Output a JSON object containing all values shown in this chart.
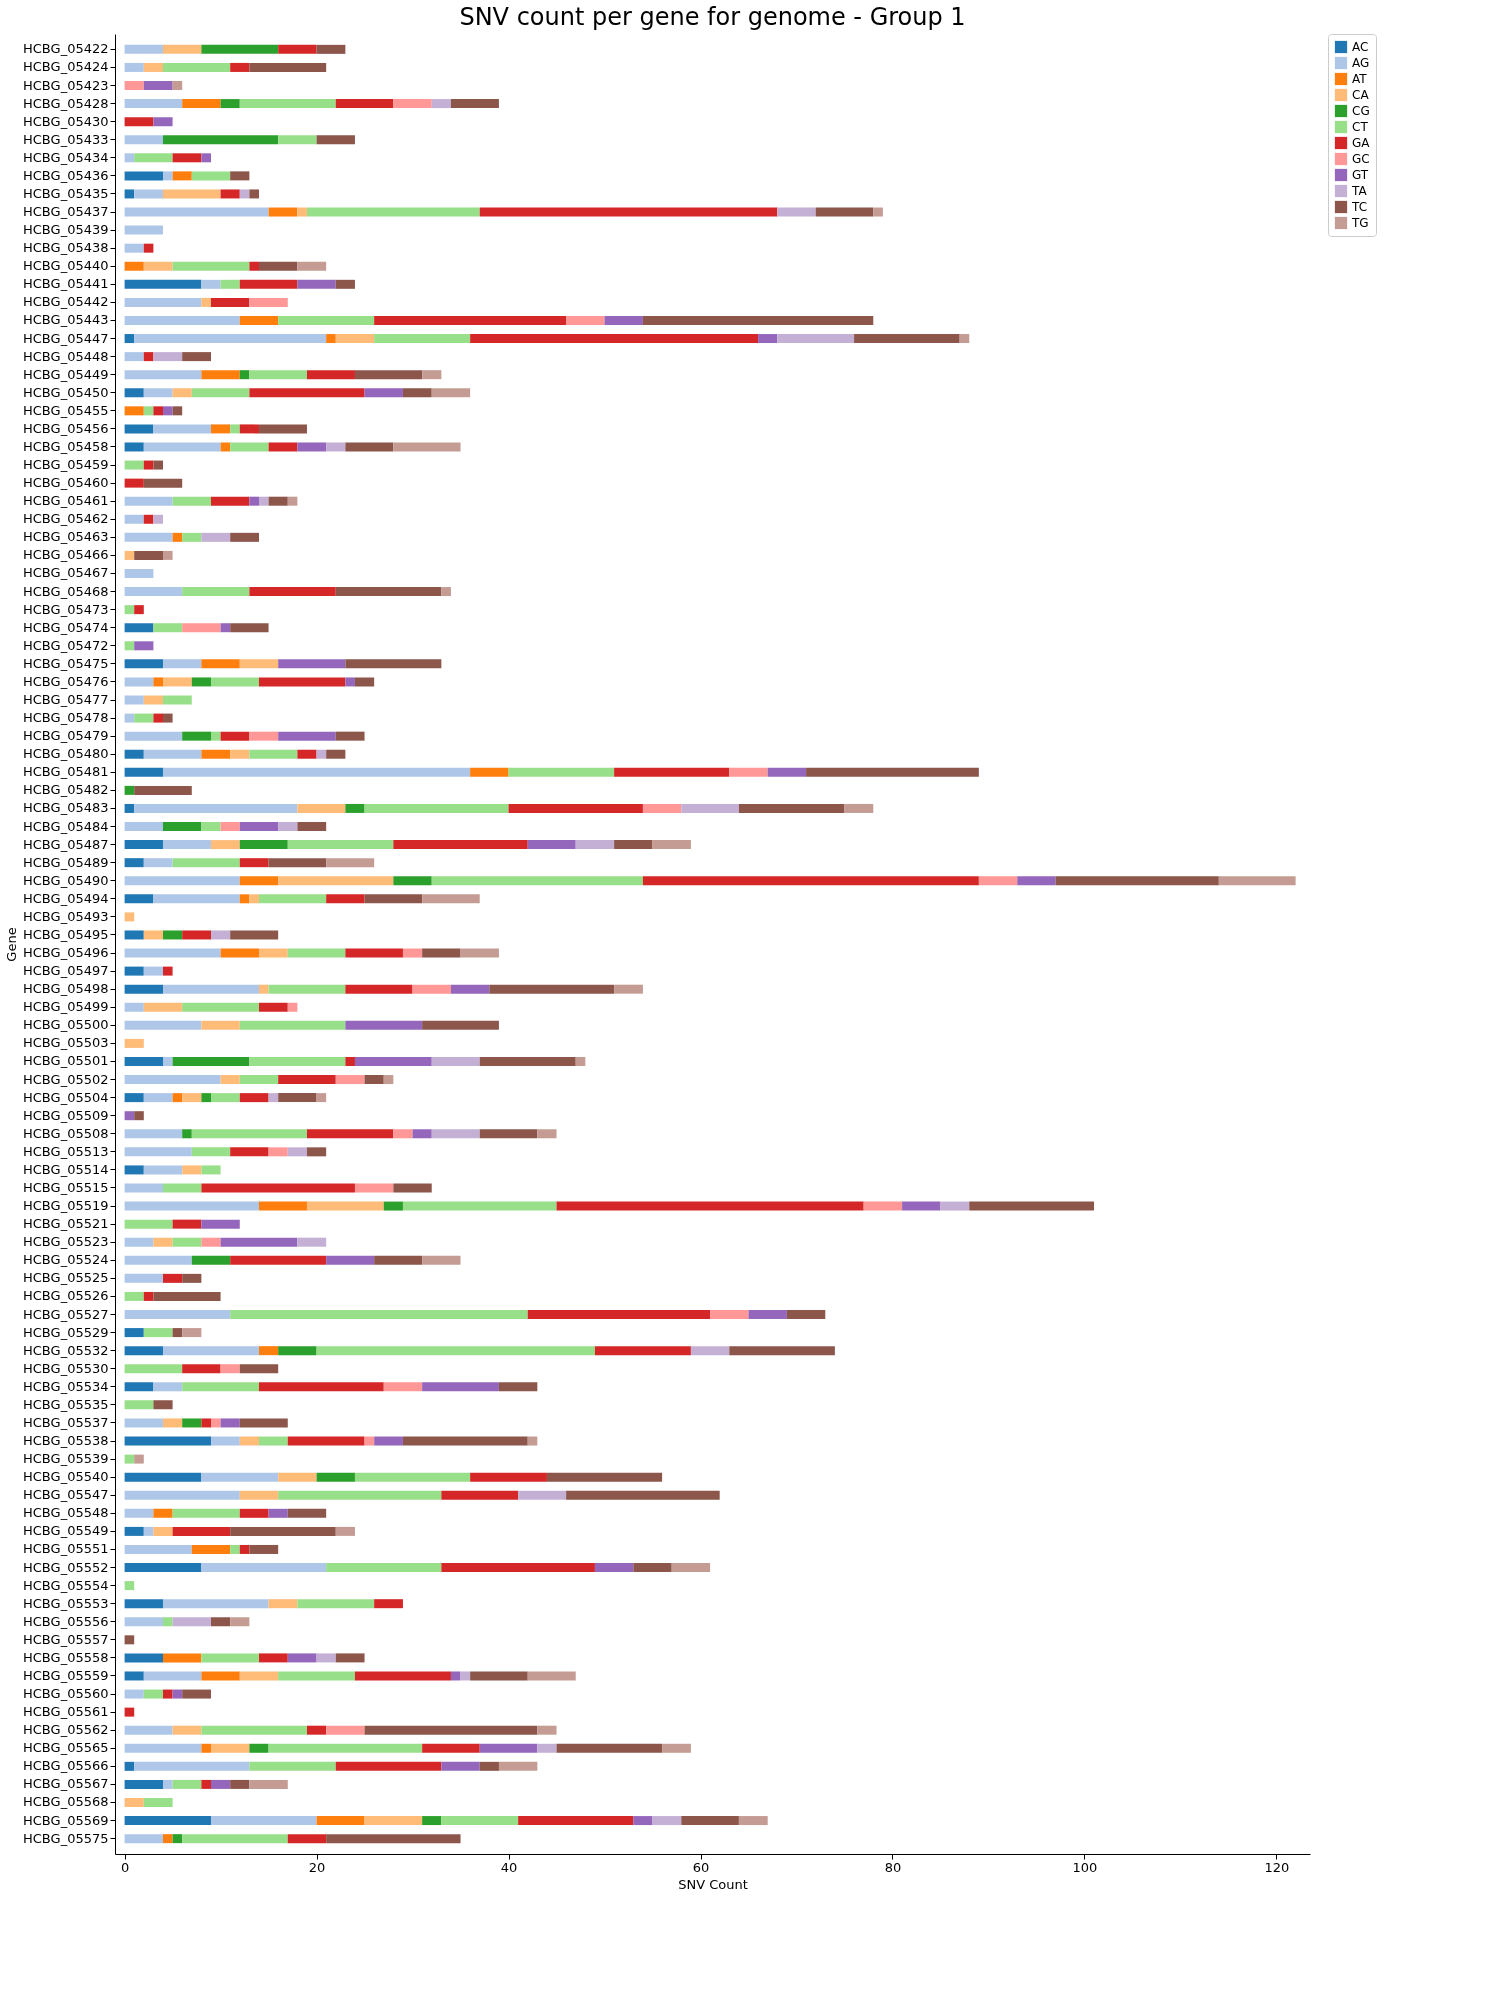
{
  "chart_data": {
    "type": "bar",
    "orientation": "horizontal",
    "stacked": true,
    "title": "SNV count per gene for genome - Group 1",
    "xlabel": "SNV Count",
    "ylabel": "Gene",
    "legend": "top right",
    "grid": false,
    "xlim": [
      -1,
      123.5
    ],
    "xticks": [
      0,
      20,
      40,
      60,
      80,
      100,
      120
    ],
    "categories": [
      "HCBG_05422",
      "HCBG_05424",
      "HCBG_05423",
      "HCBG_05428",
      "HCBG_05430",
      "HCBG_05433",
      "HCBG_05434",
      "HCBG_05436",
      "HCBG_05435",
      "HCBG_05437",
      "HCBG_05439",
      "HCBG_05438",
      "HCBG_05440",
      "HCBG_05441",
      "HCBG_05442",
      "HCBG_05443",
      "HCBG_05447",
      "HCBG_05448",
      "HCBG_05449",
      "HCBG_05450",
      "HCBG_05455",
      "HCBG_05456",
      "HCBG_05458",
      "HCBG_05459",
      "HCBG_05460",
      "HCBG_05461",
      "HCBG_05462",
      "HCBG_05463",
      "HCBG_05466",
      "HCBG_05467",
      "HCBG_05468",
      "HCBG_05473",
      "HCBG_05474",
      "HCBG_05472",
      "HCBG_05475",
      "HCBG_05476",
      "HCBG_05477",
      "HCBG_05478",
      "HCBG_05479",
      "HCBG_05480",
      "HCBG_05481",
      "HCBG_05482",
      "HCBG_05483",
      "HCBG_05484",
      "HCBG_05487",
      "HCBG_05489",
      "HCBG_05490",
      "HCBG_05494",
      "HCBG_05493",
      "HCBG_05495",
      "HCBG_05496",
      "HCBG_05497",
      "HCBG_05498",
      "HCBG_05499",
      "HCBG_05500",
      "HCBG_05503",
      "HCBG_05501",
      "HCBG_05502",
      "HCBG_05504",
      "HCBG_05509",
      "HCBG_05508",
      "HCBG_05513",
      "HCBG_05514",
      "HCBG_05515",
      "HCBG_05519",
      "HCBG_05521",
      "HCBG_05523",
      "HCBG_05524",
      "HCBG_05525",
      "HCBG_05526",
      "HCBG_05527",
      "HCBG_05529",
      "HCBG_05532",
      "HCBG_05530",
      "HCBG_05534",
      "HCBG_05535",
      "HCBG_05537",
      "HCBG_05538",
      "HCBG_05539",
      "HCBG_05540",
      "HCBG_05547",
      "HCBG_05548",
      "HCBG_05549",
      "HCBG_05551",
      "HCBG_05552",
      "HCBG_05554",
      "HCBG_05553",
      "HCBG_05556",
      "HCBG_05557",
      "HCBG_05558",
      "HCBG_05559",
      "HCBG_05560",
      "HCBG_05561",
      "HCBG_05562",
      "HCBG_05565",
      "HCBG_05566",
      "HCBG_05567",
      "HCBG_05568",
      "HCBG_05569",
      "HCBG_05575"
    ],
    "series": [
      {
        "name": "AC",
        "color": "#1f77b4",
        "values": [
          0,
          0,
          0,
          0,
          0,
          0,
          0,
          4,
          1,
          0,
          0,
          0,
          0,
          8,
          0,
          0,
          1,
          0,
          0,
          2,
          0,
          3,
          2,
          0,
          0,
          0,
          0,
          0,
          0,
          0,
          0,
          0,
          3,
          0,
          4,
          0,
          0,
          0,
          0,
          2,
          4,
          0,
          1,
          0,
          4,
          2,
          0,
          3,
          0,
          2,
          0,
          2,
          4,
          0,
          0,
          0,
          4,
          0,
          2,
          0,
          0,
          0,
          2,
          0,
          0,
          0,
          0,
          0,
          0,
          0,
          0,
          2,
          4,
          0,
          3,
          0,
          0,
          9,
          0,
          8,
          0,
          0,
          2,
          0,
          8,
          0,
          4,
          0,
          0,
          4,
          2,
          0,
          0,
          0,
          0,
          1,
          4,
          0,
          9,
          0
        ]
      },
      {
        "name": "AG",
        "color": "#aec7e8",
        "values": [
          4,
          2,
          0,
          6,
          0,
          4,
          1,
          1,
          3,
          15,
          4,
          2,
          0,
          2,
          8,
          12,
          20,
          2,
          8,
          3,
          0,
          6,
          8,
          0,
          0,
          5,
          2,
          5,
          0,
          3,
          6,
          0,
          0,
          0,
          4,
          3,
          2,
          1,
          6,
          6,
          32,
          0,
          17,
          4,
          5,
          3,
          12,
          9,
          0,
          0,
          10,
          2,
          10,
          2,
          8,
          0,
          1,
          10,
          3,
          0,
          6,
          7,
          4,
          4,
          14,
          0,
          3,
          7,
          4,
          0,
          11,
          0,
          10,
          0,
          3,
          0,
          4,
          3,
          0,
          8,
          12,
          3,
          1,
          7,
          13,
          0,
          11,
          4,
          0,
          0,
          6,
          2,
          0,
          5,
          8,
          12,
          1,
          0,
          11,
          4
        ]
      },
      {
        "name": "AT",
        "color": "#ff7f0e",
        "values": [
          0,
          0,
          0,
          4,
          0,
          0,
          0,
          2,
          0,
          3,
          0,
          0,
          2,
          0,
          0,
          4,
          1,
          0,
          4,
          0,
          2,
          2,
          1,
          0,
          0,
          0,
          0,
          1,
          0,
          0,
          0,
          0,
          0,
          0,
          4,
          1,
          0,
          0,
          0,
          3,
          4,
          0,
          0,
          0,
          0,
          0,
          4,
          1,
          0,
          0,
          4,
          0,
          0,
          0,
          0,
          0,
          0,
          0,
          1,
          0,
          0,
          0,
          0,
          0,
          5,
          0,
          0,
          0,
          0,
          0,
          0,
          0,
          2,
          0,
          0,
          0,
          0,
          0,
          0,
          0,
          0,
          2,
          0,
          4,
          0,
          0,
          0,
          0,
          0,
          4,
          4,
          0,
          0,
          0,
          1,
          0,
          0,
          0,
          5,
          1
        ]
      },
      {
        "name": "CA",
        "color": "#ffbb78",
        "values": [
          4,
          2,
          0,
          0,
          0,
          0,
          0,
          0,
          6,
          1,
          0,
          0,
          3,
          0,
          1,
          0,
          4,
          0,
          0,
          2,
          0,
          0,
          0,
          0,
          0,
          0,
          0,
          0,
          1,
          0,
          0,
          0,
          0,
          0,
          4,
          3,
          2,
          0,
          0,
          2,
          0,
          0,
          5,
          0,
          3,
          0,
          12,
          1,
          1,
          2,
          3,
          0,
          1,
          4,
          4,
          2,
          0,
          2,
          2,
          0,
          0,
          0,
          2,
          0,
          8,
          0,
          2,
          0,
          0,
          0,
          0,
          0,
          0,
          0,
          0,
          0,
          2,
          2,
          0,
          4,
          4,
          0,
          2,
          0,
          0,
          0,
          3,
          0,
          0,
          0,
          4,
          0,
          0,
          3,
          4,
          0,
          0,
          2,
          6,
          0
        ]
      },
      {
        "name": "CG",
        "color": "#2ca02c",
        "values": [
          8,
          0,
          0,
          2,
          0,
          12,
          0,
          0,
          0,
          0,
          0,
          0,
          0,
          0,
          0,
          0,
          0,
          0,
          1,
          0,
          0,
          0,
          0,
          0,
          0,
          0,
          0,
          0,
          0,
          0,
          0,
          0,
          0,
          0,
          0,
          2,
          0,
          0,
          3,
          0,
          0,
          1,
          2,
          4,
          5,
          0,
          4,
          0,
          0,
          2,
          0,
          0,
          0,
          0,
          0,
          0,
          8,
          0,
          1,
          0,
          1,
          0,
          0,
          0,
          2,
          0,
          0,
          4,
          0,
          0,
          0,
          0,
          4,
          0,
          0,
          0,
          2,
          0,
          0,
          4,
          0,
          0,
          0,
          0,
          0,
          0,
          0,
          0,
          0,
          0,
          0,
          0,
          0,
          0,
          2,
          0,
          0,
          0,
          2,
          1
        ]
      },
      {
        "name": "CT",
        "color": "#98df8a",
        "values": [
          0,
          7,
          0,
          10,
          0,
          4,
          4,
          4,
          0,
          18,
          0,
          0,
          8,
          2,
          0,
          10,
          10,
          0,
          6,
          6,
          1,
          1,
          4,
          2,
          0,
          4,
          0,
          2,
          0,
          0,
          7,
          1,
          3,
          1,
          0,
          5,
          3,
          2,
          1,
          5,
          11,
          0,
          15,
          2,
          11,
          7,
          22,
          7,
          0,
          0,
          6,
          0,
          8,
          8,
          11,
          0,
          10,
          4,
          3,
          0,
          12,
          4,
          2,
          4,
          16,
          5,
          3,
          0,
          0,
          2,
          31,
          3,
          29,
          6,
          8,
          3,
          0,
          3,
          1,
          12,
          17,
          7,
          0,
          1,
          12,
          1,
          8,
          1,
          0,
          6,
          8,
          2,
          0,
          11,
          16,
          9,
          3,
          3,
          8,
          11
        ]
      },
      {
        "name": "GA",
        "color": "#d62728",
        "values": [
          4,
          2,
          0,
          6,
          3,
          0,
          3,
          0,
          2,
          31,
          0,
          1,
          1,
          6,
          4,
          20,
          30,
          1,
          5,
          12,
          1,
          2,
          3,
          1,
          2,
          4,
          1,
          0,
          0,
          0,
          9,
          1,
          0,
          0,
          0,
          9,
          0,
          1,
          3,
          2,
          12,
          0,
          14,
          0,
          14,
          3,
          35,
          4,
          0,
          3,
          6,
          1,
          7,
          3,
          0,
          0,
          1,
          6,
          3,
          0,
          9,
          4,
          0,
          16,
          32,
          3,
          0,
          10,
          2,
          1,
          19,
          0,
          10,
          4,
          13,
          0,
          1,
          8,
          0,
          8,
          8,
          3,
          6,
          1,
          16,
          0,
          3,
          0,
          0,
          3,
          10,
          1,
          1,
          2,
          6,
          11,
          1,
          0,
          12,
          4
        ]
      },
      {
        "name": "GC",
        "color": "#ff9896",
        "values": [
          0,
          0,
          2,
          4,
          0,
          0,
          0,
          0,
          0,
          0,
          0,
          0,
          0,
          0,
          4,
          4,
          0,
          0,
          0,
          0,
          0,
          0,
          0,
          0,
          0,
          0,
          0,
          0,
          0,
          0,
          0,
          0,
          4,
          0,
          0,
          0,
          0,
          0,
          3,
          0,
          4,
          0,
          4,
          2,
          0,
          0,
          4,
          0,
          0,
          0,
          2,
          0,
          4,
          1,
          0,
          0,
          0,
          3,
          0,
          0,
          2,
          2,
          0,
          4,
          4,
          0,
          2,
          0,
          0,
          0,
          4,
          0,
          0,
          2,
          4,
          0,
          1,
          1,
          0,
          0,
          0,
          0,
          0,
          0,
          0,
          0,
          0,
          0,
          0,
          0,
          0,
          0,
          0,
          4,
          0,
          0,
          0,
          0,
          0,
          0
        ]
      },
      {
        "name": "GT",
        "color": "#9467bd",
        "values": [
          0,
          0,
          3,
          0,
          2,
          0,
          1,
          0,
          0,
          0,
          0,
          0,
          0,
          4,
          0,
          4,
          2,
          0,
          0,
          4,
          1,
          0,
          3,
          0,
          0,
          1,
          0,
          0,
          0,
          0,
          0,
          0,
          1,
          2,
          7,
          1,
          0,
          0,
          6,
          0,
          4,
          0,
          0,
          4,
          5,
          0,
          4,
          0,
          0,
          0,
          0,
          0,
          4,
          0,
          8,
          0,
          8,
          0,
          0,
          1,
          2,
          0,
          0,
          0,
          4,
          4,
          8,
          5,
          0,
          0,
          4,
          0,
          0,
          0,
          8,
          0,
          2,
          3,
          0,
          0,
          0,
          2,
          0,
          0,
          4,
          0,
          0,
          0,
          0,
          3,
          1,
          1,
          0,
          0,
          6,
          4,
          2,
          0,
          2,
          0
        ]
      },
      {
        "name": "TA",
        "color": "#c5b0d5",
        "values": [
          0,
          0,
          0,
          2,
          0,
          0,
          0,
          0,
          1,
          4,
          0,
          0,
          0,
          0,
          0,
          0,
          8,
          3,
          0,
          0,
          0,
          0,
          2,
          0,
          0,
          1,
          1,
          3,
          0,
          0,
          0,
          0,
          0,
          0,
          0,
          0,
          0,
          0,
          0,
          1,
          0,
          0,
          6,
          2,
          4,
          0,
          0,
          0,
          0,
          2,
          0,
          0,
          0,
          0,
          0,
          0,
          5,
          0,
          1,
          0,
          5,
          2,
          0,
          0,
          3,
          0,
          3,
          0,
          0,
          0,
          0,
          0,
          4,
          0,
          0,
          0,
          0,
          0,
          0,
          0,
          5,
          0,
          0,
          0,
          0,
          0,
          0,
          4,
          0,
          2,
          1,
          0,
          0,
          0,
          2,
          0,
          0,
          0,
          3,
          0
        ]
      },
      {
        "name": "TC",
        "color": "#8c564b",
        "values": [
          3,
          8,
          0,
          5,
          0,
          4,
          0,
          2,
          1,
          6,
          0,
          0,
          4,
          2,
          0,
          24,
          11,
          3,
          7,
          3,
          1,
          5,
          5,
          1,
          4,
          2,
          0,
          3,
          3,
          0,
          11,
          0,
          4,
          0,
          10,
          2,
          0,
          1,
          3,
          2,
          18,
          6,
          11,
          3,
          4,
          6,
          17,
          6,
          0,
          5,
          4,
          0,
          13,
          0,
          8,
          0,
          10,
          2,
          4,
          1,
          6,
          2,
          0,
          4,
          13,
          0,
          0,
          5,
          2,
          7,
          4,
          1,
          11,
          4,
          4,
          2,
          5,
          13,
          0,
          12,
          16,
          4,
          11,
          3,
          4,
          0,
          0,
          2,
          1,
          3,
          6,
          3,
          0,
          18,
          11,
          2,
          2,
          0,
          6,
          14
        ]
      },
      {
        "name": "TG",
        "color": "#c49c94",
        "values": [
          0,
          0,
          1,
          0,
          0,
          0,
          0,
          0,
          0,
          1,
          0,
          0,
          3,
          0,
          0,
          0,
          1,
          0,
          2,
          4,
          0,
          0,
          7,
          0,
          0,
          1,
          0,
          0,
          1,
          0,
          1,
          0,
          0,
          0,
          0,
          0,
          0,
          0,
          0,
          0,
          0,
          0,
          3,
          0,
          4,
          5,
          8,
          6,
          0,
          0,
          4,
          0,
          3,
          0,
          0,
          0,
          1,
          1,
          1,
          0,
          2,
          0,
          0,
          0,
          0,
          0,
          0,
          4,
          0,
          0,
          0,
          2,
          0,
          0,
          0,
          0,
          0,
          1,
          1,
          0,
          0,
          0,
          2,
          0,
          4,
          0,
          0,
          2,
          0,
          0,
          5,
          0,
          0,
          2,
          3,
          4,
          4,
          0,
          3,
          0
        ]
      }
    ]
  }
}
